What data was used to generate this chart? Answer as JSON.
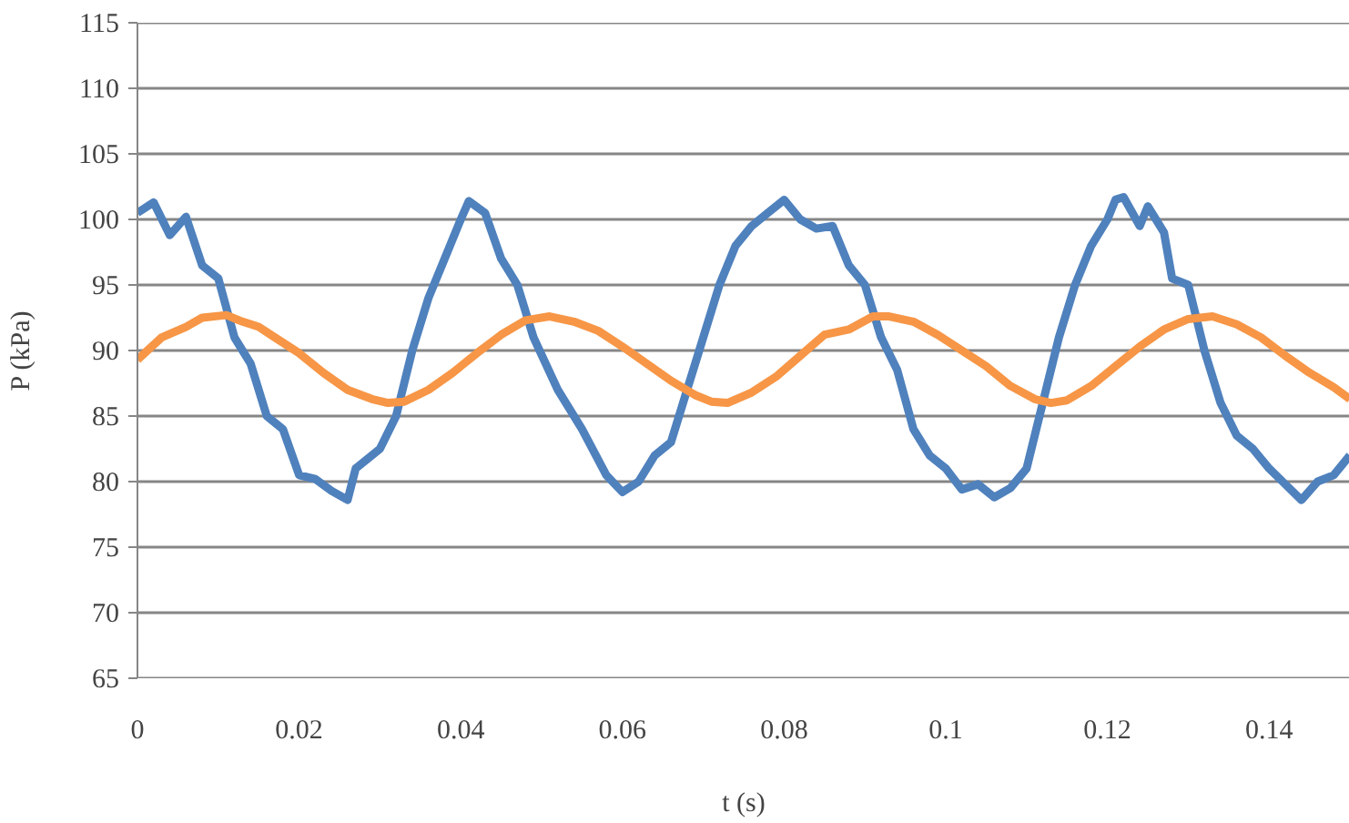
{
  "chart_data": {
    "type": "line",
    "xlabel": "t (s)",
    "ylabel": "P (kPa)",
    "xlim": [
      0,
      0.15
    ],
    "ylim": [
      65,
      115
    ],
    "xticks": [
      0,
      0.02,
      0.04,
      0.06,
      0.08,
      0.1,
      0.12,
      0.14
    ],
    "yticks": [
      65,
      70,
      75,
      80,
      85,
      90,
      95,
      100,
      105,
      110,
      115
    ],
    "grid": "y",
    "line_style": "solid",
    "series": [
      {
        "color": "#4f81bd",
        "x": [
          0,
          0.002,
          0.004,
          0.006,
          0.008,
          0.01,
          0.012,
          0.014,
          0.016,
          0.018,
          0.02,
          0.022,
          0.024,
          0.026,
          0.027,
          0.03,
          0.032,
          0.034,
          0.036,
          0.038,
          0.04,
          0.041,
          0.043,
          0.045,
          0.047,
          0.049,
          0.052,
          0.055,
          0.058,
          0.06,
          0.062,
          0.064,
          0.066,
          0.068,
          0.07,
          0.072,
          0.074,
          0.076,
          0.078,
          0.08,
          0.082,
          0.084,
          0.086,
          0.088,
          0.09,
          0.092,
          0.094,
          0.096,
          0.098,
          0.1,
          0.102,
          0.104,
          0.106,
          0.108,
          0.11,
          0.112,
          0.114,
          0.116,
          0.118,
          0.12,
          0.121,
          0.122,
          0.124,
          0.125,
          0.127,
          0.128,
          0.13,
          0.132,
          0.134,
          0.136,
          0.138,
          0.14,
          0.142,
          0.144,
          0.146,
          0.148,
          0.15
        ],
        "values": [
          100.5,
          101.3,
          98.8,
          100.2,
          96.5,
          95.5,
          91,
          89,
          85,
          84,
          80.5,
          80.2,
          79.3,
          78.6,
          81,
          82.5,
          85,
          90,
          94,
          97,
          100,
          101.4,
          100.5,
          97,
          95,
          91,
          87,
          84,
          80.5,
          79.2,
          80,
          82,
          83,
          87,
          91,
          95,
          98,
          99.5,
          100.5,
          101.5,
          100,
          99.3,
          99.5,
          96.5,
          95,
          91,
          88.5,
          84,
          82,
          81,
          79.4,
          79.8,
          78.8,
          79.5,
          81,
          86,
          91,
          95,
          98,
          100,
          101.5,
          101.7,
          99.5,
          101,
          99,
          95.5,
          95,
          90,
          86,
          83.5,
          82.5,
          81,
          79.8,
          78.6,
          80,
          80.5,
          82
        ]
      },
      {
        "color": "#f79646",
        "x": [
          0,
          0.003,
          0.006,
          0.008,
          0.011,
          0.013,
          0.015,
          0.017,
          0.02,
          0.023,
          0.026,
          0.029,
          0.031,
          0.033,
          0.036,
          0.039,
          0.042,
          0.045,
          0.048,
          0.051,
          0.054,
          0.057,
          0.06,
          0.063,
          0.066,
          0.069,
          0.071,
          0.073,
          0.076,
          0.079,
          0.082,
          0.085,
          0.088,
          0.091,
          0.093,
          0.096,
          0.099,
          0.102,
          0.105,
          0.108,
          0.111,
          0.113,
          0.115,
          0.118,
          0.121,
          0.124,
          0.127,
          0.13,
          0.133,
          0.136,
          0.139,
          0.142,
          0.145,
          0.148,
          0.15
        ],
        "values": [
          89.3,
          91,
          91.8,
          92.5,
          92.7,
          92.2,
          91.8,
          91,
          89.8,
          88.3,
          87,
          86.3,
          86,
          86.1,
          87,
          88.3,
          89.8,
          91.2,
          92.3,
          92.6,
          92.2,
          91.5,
          90.3,
          89,
          87.7,
          86.6,
          86.1,
          86,
          86.8,
          88,
          89.6,
          91.2,
          91.6,
          92.6,
          92.6,
          92.2,
          91.2,
          90,
          88.8,
          87.3,
          86.3,
          86,
          86.2,
          87.3,
          88.8,
          90.3,
          91.6,
          92.4,
          92.6,
          92,
          91,
          89.6,
          88.3,
          87.2,
          86.3
        ]
      }
    ]
  }
}
